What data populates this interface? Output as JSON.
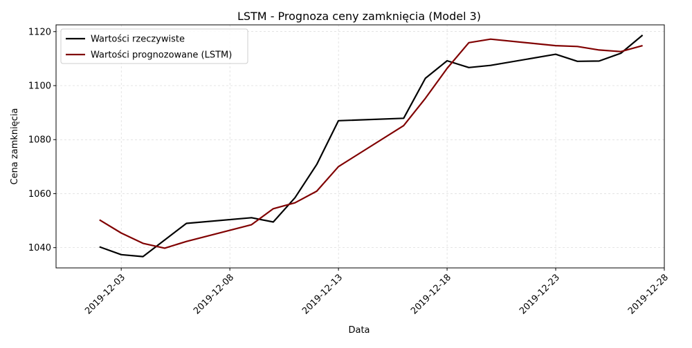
{
  "chart_data": {
    "type": "line",
    "title": "LSTM - Prognoza ceny zamknięcia (Model 3)",
    "xlabel": "Data",
    "ylabel": "Cena zamknięcia",
    "x_ticks": [
      "2019-12-03",
      "2019-12-08",
      "2019-12-13",
      "2019-12-18",
      "2019-12-23",
      "2019-12-28"
    ],
    "y_ticks": [
      1040,
      1060,
      1080,
      1100,
      1120
    ],
    "xlim": [
      "2019-11-30",
      "2019-12-28"
    ],
    "ylim": [
      1032.5,
      1122.5
    ],
    "grid": true,
    "legend_position": "top-left",
    "series": [
      {
        "name": "Wartości rzeczywiste",
        "color": "#000000",
        "points": [
          [
            "2019-12-02",
            1040.3
          ],
          [
            "2019-12-03",
            1037.4
          ],
          [
            "2019-12-04",
            1036.7
          ],
          [
            "2019-12-06",
            1049.0
          ],
          [
            "2019-12-09",
            1051.1
          ],
          [
            "2019-12-10",
            1049.5
          ],
          [
            "2019-12-11",
            1058.5
          ],
          [
            "2019-12-12",
            1070.8
          ],
          [
            "2019-12-13",
            1087.0
          ],
          [
            "2019-12-16",
            1087.9
          ],
          [
            "2019-12-17",
            1102.7
          ],
          [
            "2019-12-18",
            1109.2
          ],
          [
            "2019-12-19",
            1106.7
          ],
          [
            "2019-12-20",
            1107.5
          ],
          [
            "2019-12-23",
            1111.6
          ],
          [
            "2019-12-24",
            1109.0
          ],
          [
            "2019-12-25",
            1109.1
          ],
          [
            "2019-12-26",
            1112.0
          ],
          [
            "2019-12-27",
            1118.7
          ]
        ]
      },
      {
        "name": "Wartości prognozowane (LSTM)",
        "color": "#800000",
        "points": [
          [
            "2019-12-02",
            1050.3
          ],
          [
            "2019-12-03",
            1045.4
          ],
          [
            "2019-12-04",
            1041.6
          ],
          [
            "2019-12-05",
            1039.8
          ],
          [
            "2019-12-06",
            1042.3
          ],
          [
            "2019-12-09",
            1048.5
          ],
          [
            "2019-12-10",
            1054.4
          ],
          [
            "2019-12-11",
            1056.6
          ],
          [
            "2019-12-12",
            1060.9
          ],
          [
            "2019-12-13",
            1070.0
          ],
          [
            "2019-12-16",
            1085.2
          ],
          [
            "2019-12-17",
            1095.3
          ],
          [
            "2019-12-18",
            1106.4
          ],
          [
            "2019-12-19",
            1115.9
          ],
          [
            "2019-12-20",
            1117.2
          ],
          [
            "2019-12-23",
            1114.8
          ],
          [
            "2019-12-24",
            1114.5
          ],
          [
            "2019-12-25",
            1113.2
          ],
          [
            "2019-12-26",
            1112.6
          ],
          [
            "2019-12-27",
            1114.8
          ]
        ]
      }
    ]
  }
}
